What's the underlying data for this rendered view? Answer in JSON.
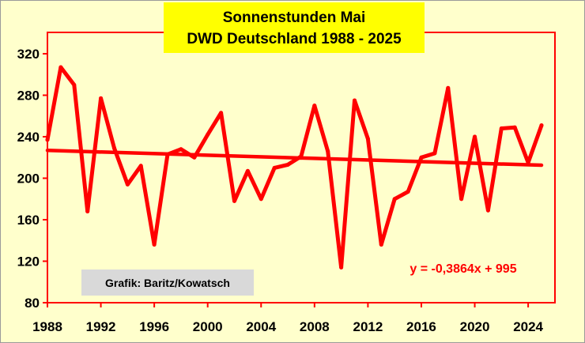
{
  "chart_data": {
    "type": "line",
    "title": "Sonnenstunden Mai",
    "subtitle": "DWD Deutschland 1988 - 2025",
    "x": [
      1988,
      1989,
      1990,
      1991,
      1992,
      1993,
      1994,
      1995,
      1996,
      1997,
      1998,
      1999,
      2000,
      2001,
      2002,
      2003,
      2004,
      2005,
      2006,
      2007,
      2008,
      2009,
      2010,
      2011,
      2012,
      2013,
      2014,
      2015,
      2016,
      2017,
      2018,
      2019,
      2020,
      2021,
      2022,
      2023,
      2024,
      2025
    ],
    "series": [
      {
        "values": [
          237,
          307,
          290,
          168,
          277,
          229,
          194,
          212,
          136,
          223,
          228,
          220,
          242,
          263,
          178,
          207,
          180,
          210,
          213,
          221,
          270,
          226,
          114,
          275,
          238,
          136,
          180,
          187,
          220,
          224,
          287,
          180,
          240,
          169,
          248,
          249,
          215,
          251
        ]
      }
    ],
    "trendline": {
      "slope": -0.3864,
      "intercept": 995,
      "label": "y = -0,3864x + 995"
    },
    "xlim": [
      1988,
      2025
    ],
    "ylim": [
      80,
      340
    ],
    "xticks": [
      1988,
      1992,
      1996,
      2000,
      2004,
      2008,
      2012,
      2016,
      2020,
      2024
    ],
    "yticks": [
      80,
      120,
      160,
      200,
      240,
      280,
      320
    ],
    "grid": false,
    "colors": {
      "background": "#ffffcc",
      "plot_area": "#ffffcc",
      "plot_border": "#ff0000",
      "series": "#ff0000",
      "trend": "#ff0000",
      "title_box": "#ffff00",
      "credit_box": "#d9d9d9"
    },
    "credit": "Grafik: Baritz/Kowatsch"
  }
}
